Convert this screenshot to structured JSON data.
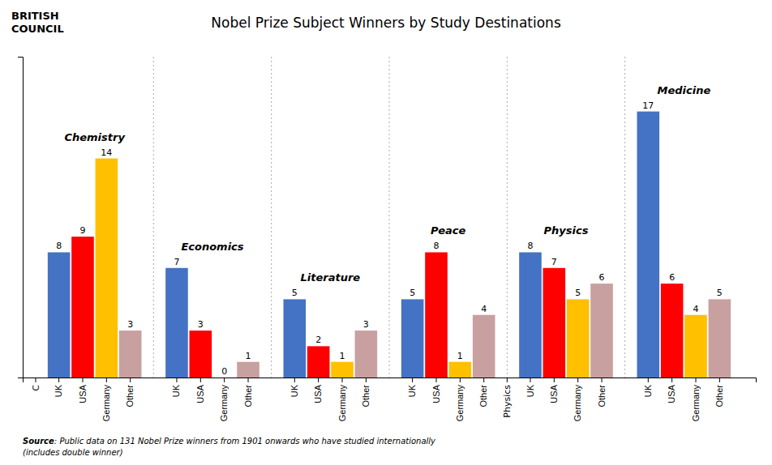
{
  "chart_data": {
    "type": "bar",
    "title": "Nobel Prize Subject Winners by Study Destinations",
    "categories": [
      "Chemistry",
      "Economics",
      "Literature",
      "Peace",
      "Physics",
      "Medicine"
    ],
    "series": [
      {
        "name": "UK",
        "color": "#4472C4",
        "values": [
          8,
          7,
          5,
          5,
          8,
          17
        ]
      },
      {
        "name": "USA",
        "color": "#FF0000",
        "values": [
          9,
          3,
          2,
          8,
          7,
          6
        ]
      },
      {
        "name": "Germany",
        "color": "#FFC000",
        "values": [
          14,
          0,
          1,
          1,
          5,
          4
        ]
      },
      {
        "name": "Other",
        "color": "#C9A0A0",
        "values": [
          3,
          1,
          3,
          4,
          6,
          5
        ]
      }
    ],
    "ylim": [
      0,
      20.5
    ],
    "yticks": [],
    "data_labels": true,
    "tick_labels": "x",
    "grid": false,
    "legend": false,
    "annotations": [
      {
        "text": "C",
        "category": "Chemistry"
      },
      {
        "text": "Physics",
        "category": "Physics"
      },
      {
        "text": "BRITISH"
      },
      {
        "text": "COUNCIL"
      },
      {
        "text": "Source"
      },
      {
        "text": ": Public data on 131 Nobel Prize winners from 1901 onwards who have studied internationally\n(includes double winner)"
      }
    ]
  }
}
